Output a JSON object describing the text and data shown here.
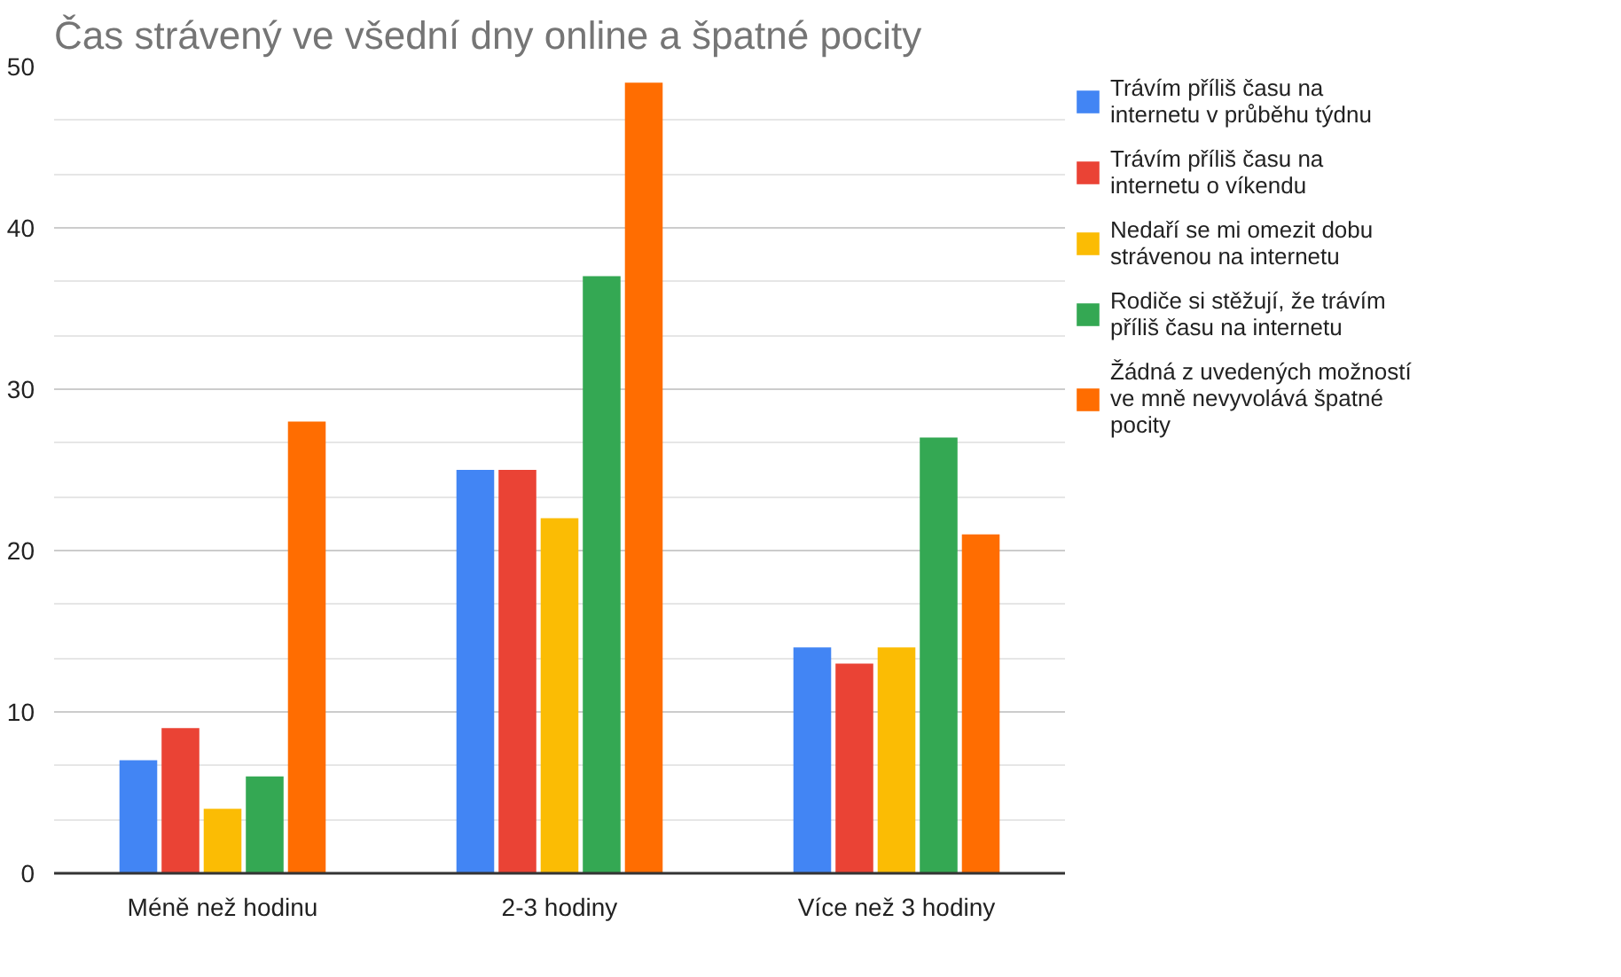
{
  "chart_data": {
    "type": "bar",
    "title": "Čas strávený ve všední dny online a špatné pocity",
    "categories": [
      "Méně než hodinu",
      "2-3 hodiny",
      "Více než 3 hodiny"
    ],
    "series": [
      {
        "name": "Trávím příliš času na internetu v průběhu týdnu",
        "color": "#4285f4",
        "values": [
          7,
          25,
          14
        ]
      },
      {
        "name": "Trávím příliš času na internetu o víkendu",
        "color": "#ea4335",
        "values": [
          9,
          25,
          13
        ]
      },
      {
        "name": "Nedaří se mi omezit dobu strávenou na internetu",
        "color": "#fbbc04",
        "values": [
          4,
          22,
          14
        ]
      },
      {
        "name": "Rodiče si stěžují, že trávím příliš času na internetu",
        "color": "#34a853",
        "values": [
          6,
          37,
          27
        ]
      },
      {
        "name": "Žádná z uvedených možností ve mně nevyvolává špatné pocity",
        "color": "#ff6d01",
        "values": [
          28,
          49,
          21
        ]
      }
    ],
    "ylim": [
      0,
      50
    ],
    "yticks": [
      0,
      10,
      20,
      30,
      40,
      50
    ],
    "grid": "y",
    "legend": "right"
  }
}
